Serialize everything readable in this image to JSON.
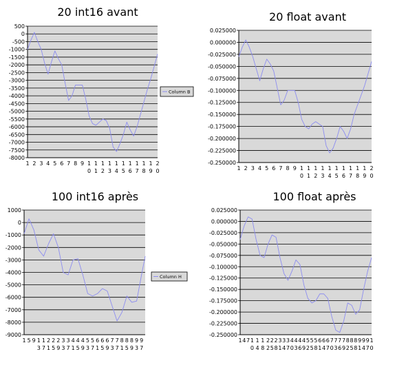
{
  "chart_data": [
    {
      "type": "line",
      "title": "20 int16 avant",
      "xlabel": "",
      "ylabel": "",
      "x_tick_labels": [
        {
          "top": "1",
          "bottom": ""
        },
        {
          "top": "2",
          "bottom": ""
        },
        {
          "top": "3",
          "bottom": ""
        },
        {
          "top": "4",
          "bottom": ""
        },
        {
          "top": "5",
          "bottom": ""
        },
        {
          "top": "6",
          "bottom": ""
        },
        {
          "top": "7",
          "bottom": ""
        },
        {
          "top": "8",
          "bottom": ""
        },
        {
          "top": "9",
          "bottom": ""
        },
        {
          "top": "1",
          "bottom": "0"
        },
        {
          "top": "1",
          "bottom": "1"
        },
        {
          "top": "1",
          "bottom": "2"
        },
        {
          "top": "1",
          "bottom": "3"
        },
        {
          "top": "1",
          "bottom": "4"
        },
        {
          "top": "1",
          "bottom": "5"
        },
        {
          "top": "1",
          "bottom": "6"
        },
        {
          "top": "1",
          "bottom": "7"
        },
        {
          "top": "1",
          "bottom": "8"
        },
        {
          "top": "1",
          "bottom": "9"
        },
        {
          "top": "2",
          "bottom": "0"
        }
      ],
      "y_ticks": [
        "500",
        "0",
        "-500",
        "-1000",
        "-1500",
        "-2000",
        "-2500",
        "-3000",
        "-3500",
        "-4000",
        "-4500",
        "-5000",
        "-5500",
        "-6000",
        "-6500",
        "-7000",
        "-7500",
        "-8000"
      ],
      "ylim": [
        -8000,
        500
      ],
      "grid": true,
      "legend_position": "right",
      "series": [
        {
          "name": "Column B",
          "x": [
            1,
            1.5,
            2,
            2.5,
            3,
            3.5,
            4,
            4.5,
            5,
            5.5,
            6,
            6.5,
            7,
            7.5,
            8,
            8.5,
            9,
            9.5,
            10,
            10.5,
            11,
            11.5,
            12,
            12.5,
            13,
            13.5,
            14,
            14.5,
            15,
            15.5,
            16,
            16.5,
            17,
            17.5,
            18,
            18.5,
            19,
            19.5,
            20
          ],
          "values": [
            -1000,
            -400,
            100,
            -500,
            -1000,
            -1900,
            -2600,
            -1800,
            -1100,
            -1600,
            -2000,
            -3200,
            -4300,
            -4000,
            -3300,
            -3300,
            -3300,
            -4200,
            -5300,
            -5800,
            -5900,
            -5700,
            -5500,
            -5600,
            -6100,
            -7300,
            -7600,
            -7100,
            -6500,
            -5700,
            -6200,
            -6600,
            -6000,
            -5200,
            -4400,
            -3600,
            -2900,
            -2100,
            -1300
          ]
        }
      ]
    },
    {
      "type": "line",
      "title": "20 float avant",
      "xlabel": "",
      "ylabel": "",
      "x_tick_labels": [
        {
          "top": "1",
          "bottom": ""
        },
        {
          "top": "2",
          "bottom": ""
        },
        {
          "top": "3",
          "bottom": ""
        },
        {
          "top": "4",
          "bottom": ""
        },
        {
          "top": "5",
          "bottom": ""
        },
        {
          "top": "6",
          "bottom": ""
        },
        {
          "top": "7",
          "bottom": ""
        },
        {
          "top": "8",
          "bottom": ""
        },
        {
          "top": "9",
          "bottom": ""
        },
        {
          "top": "1",
          "bottom": "0"
        },
        {
          "top": "1",
          "bottom": "1"
        },
        {
          "top": "1",
          "bottom": "2"
        },
        {
          "top": "1",
          "bottom": "3"
        },
        {
          "top": "1",
          "bottom": "4"
        },
        {
          "top": "1",
          "bottom": "5"
        },
        {
          "top": "1",
          "bottom": "6"
        },
        {
          "top": "1",
          "bottom": "7"
        },
        {
          "top": "1",
          "bottom": "8"
        },
        {
          "top": "1",
          "bottom": "9"
        },
        {
          "top": "2",
          "bottom": "0"
        }
      ],
      "y_ticks": [
        "0.025000",
        "0.000000",
        "-0.025000",
        "-0.050000",
        "-0.075000",
        "-0.100000",
        "-0.125000",
        "-0.150000",
        "-0.175000",
        "-0.200000",
        "-0.225000",
        "-0.250000"
      ],
      "ylim": [
        -0.25,
        0.025
      ],
      "grid": true,
      "legend_position": "none",
      "series": [
        {
          "name": "",
          "x": [
            1,
            1.5,
            2,
            2.5,
            3,
            3.5,
            4,
            4.5,
            5,
            5.5,
            6,
            6.5,
            7,
            7.5,
            8,
            8.5,
            9,
            9.5,
            10,
            10.5,
            11,
            11.5,
            12,
            12.5,
            13,
            13.5,
            14,
            14.5,
            15,
            15.5,
            16,
            16.5,
            17,
            17.5,
            18,
            18.5,
            19,
            19.5,
            20
          ],
          "values": [
            -0.03,
            -0.01,
            0.005,
            -0.01,
            -0.03,
            -0.055,
            -0.08,
            -0.055,
            -0.035,
            -0.045,
            -0.06,
            -0.095,
            -0.13,
            -0.12,
            -0.1,
            -0.1,
            -0.1,
            -0.125,
            -0.16,
            -0.175,
            -0.18,
            -0.17,
            -0.165,
            -0.17,
            -0.175,
            -0.215,
            -0.23,
            -0.22,
            -0.2,
            -0.175,
            -0.185,
            -0.2,
            -0.18,
            -0.15,
            -0.13,
            -0.11,
            -0.09,
            -0.065,
            -0.04
          ]
        }
      ]
    },
    {
      "type": "line",
      "title": "100 int16 après",
      "xlabel": "",
      "ylabel": "",
      "x_tick_labels": [
        {
          "top": "1",
          "bottom": ""
        },
        {
          "top": "5",
          "bottom": ""
        },
        {
          "top": "",
          "bottom": ""
        },
        {
          "top": "9",
          "bottom": ""
        },
        {
          "top": "1",
          "bottom": "3"
        },
        {
          "top": "1",
          "bottom": "7"
        },
        {
          "top": "2",
          "bottom": "1"
        },
        {
          "top": "2",
          "bottom": "5"
        },
        {
          "top": "2",
          "bottom": "9"
        },
        {
          "top": "3",
          "bottom": "3"
        },
        {
          "top": "3",
          "bottom": "7"
        },
        {
          "top": "4",
          "bottom": "1"
        },
        {
          "top": "4",
          "bottom": "5"
        },
        {
          "top": "4",
          "bottom": "9"
        },
        {
          "top": "5",
          "bottom": "3"
        },
        {
          "top": "5",
          "bottom": "7"
        },
        {
          "top": "6",
          "bottom": "1"
        },
        {
          "top": "6",
          "bottom": "5"
        },
        {
          "top": "6",
          "bottom": "9"
        },
        {
          "top": "7",
          "bottom": "3"
        },
        {
          "top": "7",
          "bottom": "7"
        },
        {
          "top": "8",
          "bottom": "1"
        },
        {
          "top": "8",
          "bottom": "5"
        },
        {
          "top": "8",
          "bottom": "9"
        },
        {
          "top": "9",
          "bottom": "3"
        },
        {
          "top": "9",
          "bottom": "7"
        }
      ],
      "y_ticks": [
        "1000",
        "0",
        "-1000",
        "-2000",
        "-3000",
        "-4000",
        "-5000",
        "-6000",
        "-7000",
        "-8000",
        "-9000"
      ],
      "ylim": [
        -9000,
        1000
      ],
      "grid": true,
      "legend_position": "right",
      "series": [
        {
          "name": "Column H",
          "x": [
            1,
            5,
            9,
            13,
            17,
            21,
            25,
            29,
            33,
            37,
            41,
            45,
            49,
            53,
            57,
            61,
            65,
            69,
            73,
            77,
            81,
            85,
            89,
            93,
            97,
            100
          ],
          "values": [
            -900,
            300,
            -600,
            -2200,
            -2700,
            -1700,
            -900,
            -2000,
            -4000,
            -4200,
            -3000,
            -2900,
            -4200,
            -5700,
            -5900,
            -5700,
            -5300,
            -5500,
            -6700,
            -7900,
            -7200,
            -5900,
            -6400,
            -6300,
            -4200,
            -2700
          ]
        }
      ]
    },
    {
      "type": "line",
      "title": "100 float après",
      "xlabel": "",
      "ylabel": "",
      "x_tick_labels": [
        {
          "top": "1",
          "bottom": ""
        },
        {
          "top": "4",
          "bottom": ""
        },
        {
          "top": "7",
          "bottom": ""
        },
        {
          "top": "1",
          "bottom": "0"
        },
        {
          "top": "1",
          "bottom": "4"
        },
        {
          "top": "1",
          "bottom": "8"
        },
        {
          "top": "2",
          "bottom": "2"
        },
        {
          "top": "2",
          "bottom": "5"
        },
        {
          "top": "2",
          "bottom": "8"
        },
        {
          "top": "3",
          "bottom": "1"
        },
        {
          "top": "3",
          "bottom": "4"
        },
        {
          "top": "3",
          "bottom": "7"
        },
        {
          "top": "4",
          "bottom": "0"
        },
        {
          "top": "4",
          "bottom": "3"
        },
        {
          "top": "4",
          "bottom": "6"
        },
        {
          "top": "4",
          "bottom": "9"
        },
        {
          "top": "5",
          "bottom": "2"
        },
        {
          "top": "5",
          "bottom": "5"
        },
        {
          "top": "5",
          "bottom": "8"
        },
        {
          "top": "6",
          "bottom": "1"
        },
        {
          "top": "6",
          "bottom": "4"
        },
        {
          "top": "6",
          "bottom": "7"
        },
        {
          "top": "7",
          "bottom": "0"
        },
        {
          "top": "7",
          "bottom": "3"
        },
        {
          "top": "7",
          "bottom": "6"
        },
        {
          "top": "7",
          "bottom": "9"
        },
        {
          "top": "8",
          "bottom": "2"
        },
        {
          "top": "8",
          "bottom": "5"
        },
        {
          "top": "8",
          "bottom": "8"
        },
        {
          "top": "9",
          "bottom": "1"
        },
        {
          "top": "9",
          "bottom": "4"
        },
        {
          "top": "9",
          "bottom": "7"
        },
        {
          "top": "1",
          "bottom": "0"
        }
      ],
      "y_ticks": [
        "0.025000",
        "0.000000",
        "-0.025000",
        "-0.050000",
        "-0.075000",
        "-0.100000",
        "-0.125000",
        "-0.150000",
        "-0.175000",
        "-0.200000",
        "-0.225000",
        "-0.250000"
      ],
      "ylim": [
        -0.25,
        0.025
      ],
      "grid": true,
      "legend_position": "none",
      "series": [
        {
          "name": "",
          "x": [
            1,
            4,
            7,
            10,
            13,
            16,
            19,
            22,
            25,
            28,
            31,
            34,
            37,
            40,
            43,
            46,
            49,
            52,
            55,
            58,
            61,
            64,
            67,
            70,
            73,
            76,
            79,
            82,
            85,
            88,
            91,
            94,
            97,
            100
          ],
          "values": [
            -0.04,
            -0.01,
            0.01,
            0.005,
            -0.04,
            -0.075,
            -0.08,
            -0.05,
            -0.03,
            -0.035,
            -0.08,
            -0.115,
            -0.13,
            -0.11,
            -0.085,
            -0.095,
            -0.14,
            -0.17,
            -0.18,
            -0.175,
            -0.16,
            -0.16,
            -0.17,
            -0.21,
            -0.24,
            -0.245,
            -0.22,
            -0.18,
            -0.185,
            -0.205,
            -0.195,
            -0.15,
            -0.11,
            -0.08
          ]
        }
      ]
    }
  ]
}
